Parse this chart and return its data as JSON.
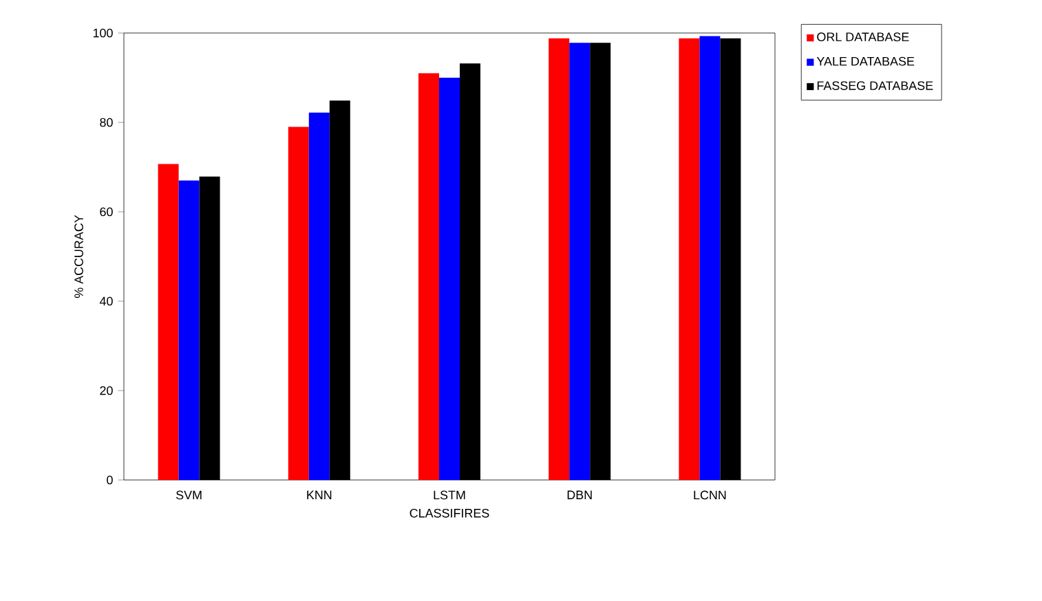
{
  "chart_data": {
    "type": "bar",
    "xlabel": "CLASSIFIRES",
    "ylabel": "% ACCURACY",
    "categories": [
      "SVM",
      "KNN",
      "LSTM",
      "DBN",
      "LCNN"
    ],
    "series": [
      {
        "name": "ORL DATABASE",
        "color": "#ff0000",
        "values": [
          70.7,
          79,
          91,
          98.8,
          98.8
        ]
      },
      {
        "name": "YALE DATABASE",
        "color": "#0000ff",
        "values": [
          67,
          82.2,
          90,
          97.8,
          99.3
        ]
      },
      {
        "name": "FASSEG DATABASE",
        "color": "#000000",
        "values": [
          67.9,
          84.9,
          93.2,
          97.8,
          98.8
        ]
      }
    ],
    "ylim": [
      0,
      100
    ],
    "yticks": [
      0,
      20,
      40,
      60,
      80,
      100
    ],
    "legend": "top right",
    "grid": false
  }
}
